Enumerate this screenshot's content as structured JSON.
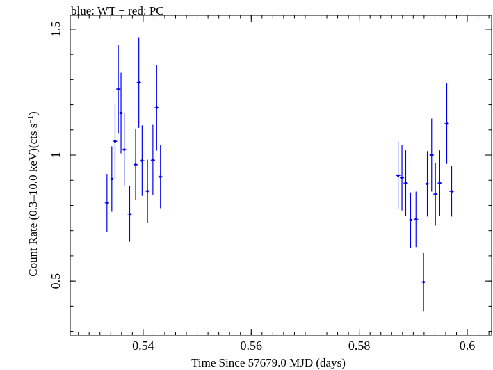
{
  "chart_data": {
    "type": "scatter",
    "title": "blue: WT − red: PC",
    "xlabel": "Time Since 57679.0 MJD (days)",
    "ylabel": "Count Rate (0.3–10.0 keV)(cts s",
    "ylabel_sup": "−1",
    "ylabel_end": ")",
    "xlim": [
      0.5265,
      0.6045
    ],
    "ylim": [
      0.285,
      1.555
    ],
    "xticks": [
      {
        "value": 0.54,
        "label": "0.54"
      },
      {
        "value": 0.56,
        "label": "0.56"
      },
      {
        "value": 0.58,
        "label": "0.58"
      },
      {
        "value": 0.6,
        "label": "0.6"
      }
    ],
    "yticks": [
      {
        "value": 0.5,
        "label": "0.5"
      },
      {
        "value": 1.0,
        "label": "1"
      },
      {
        "value": 1.5,
        "label": "1.5"
      }
    ],
    "x_minor_step": 0.002,
    "y_minor_step": 0.1,
    "grid": false,
    "colors": {
      "wt": "#0000ee",
      "pc": "#ff0000"
    },
    "series": [
      {
        "name": "WT",
        "color": "#0000ee",
        "points": [
          {
            "x": 0.5333,
            "xerr": 0.0004,
            "y": 0.81,
            "yerr": 0.115
          },
          {
            "x": 0.5342,
            "xerr": 0.0004,
            "y": 0.905,
            "yerr": 0.13
          },
          {
            "x": 0.5348,
            "xerr": 0.0004,
            "y": 1.055,
            "yerr": 0.15
          },
          {
            "x": 0.5354,
            "xerr": 0.0004,
            "y": 1.262,
            "yerr": 0.175
          },
          {
            "x": 0.5359,
            "xerr": 0.0004,
            "y": 1.167,
            "yerr": 0.16
          },
          {
            "x": 0.5365,
            "xerr": 0.0004,
            "y": 1.022,
            "yerr": 0.145
          },
          {
            "x": 0.5375,
            "xerr": 0.0004,
            "y": 0.766,
            "yerr": 0.11
          },
          {
            "x": 0.5386,
            "xerr": 0.0004,
            "y": 0.962,
            "yerr": 0.14
          },
          {
            "x": 0.5392,
            "xerr": 0.0004,
            "y": 1.288,
            "yerr": 0.18
          },
          {
            "x": 0.5398,
            "xerr": 0.0004,
            "y": 0.978,
            "yerr": 0.14
          },
          {
            "x": 0.5408,
            "xerr": 0.0004,
            "y": 0.857,
            "yerr": 0.125
          },
          {
            "x": 0.5418,
            "xerr": 0.0004,
            "y": 0.98,
            "yerr": 0.14
          },
          {
            "x": 0.5425,
            "xerr": 0.0004,
            "y": 1.188,
            "yerr": 0.17
          },
          {
            "x": 0.5432,
            "xerr": 0.0004,
            "y": 0.914,
            "yerr": 0.125
          },
          {
            "x": 0.5872,
            "xerr": 0.0004,
            "y": 0.919,
            "yerr": 0.135
          },
          {
            "x": 0.5879,
            "xerr": 0.0004,
            "y": 0.91,
            "yerr": 0.13
          },
          {
            "x": 0.5886,
            "xerr": 0.0004,
            "y": 0.889,
            "yerr": 0.13
          },
          {
            "x": 0.5895,
            "xerr": 0.0004,
            "y": 0.742,
            "yerr": 0.11
          },
          {
            "x": 0.5905,
            "xerr": 0.0004,
            "y": 0.745,
            "yerr": 0.11
          },
          {
            "x": 0.5919,
            "xerr": 0.0004,
            "y": 0.496,
            "yerr": 0.115
          },
          {
            "x": 0.5926,
            "xerr": 0.0004,
            "y": 0.886,
            "yerr": 0.13
          },
          {
            "x": 0.5934,
            "xerr": 0.0004,
            "y": 1.0,
            "yerr": 0.145
          },
          {
            "x": 0.5941,
            "xerr": 0.0004,
            "y": 0.845,
            "yerr": 0.125
          },
          {
            "x": 0.5949,
            "xerr": 0.0004,
            "y": 0.889,
            "yerr": 0.13
          },
          {
            "x": 0.5962,
            "xerr": 0.0004,
            "y": 1.125,
            "yerr": 0.16
          },
          {
            "x": 0.5971,
            "xerr": 0.0004,
            "y": 0.856,
            "yerr": 0.1
          }
        ]
      }
    ]
  }
}
